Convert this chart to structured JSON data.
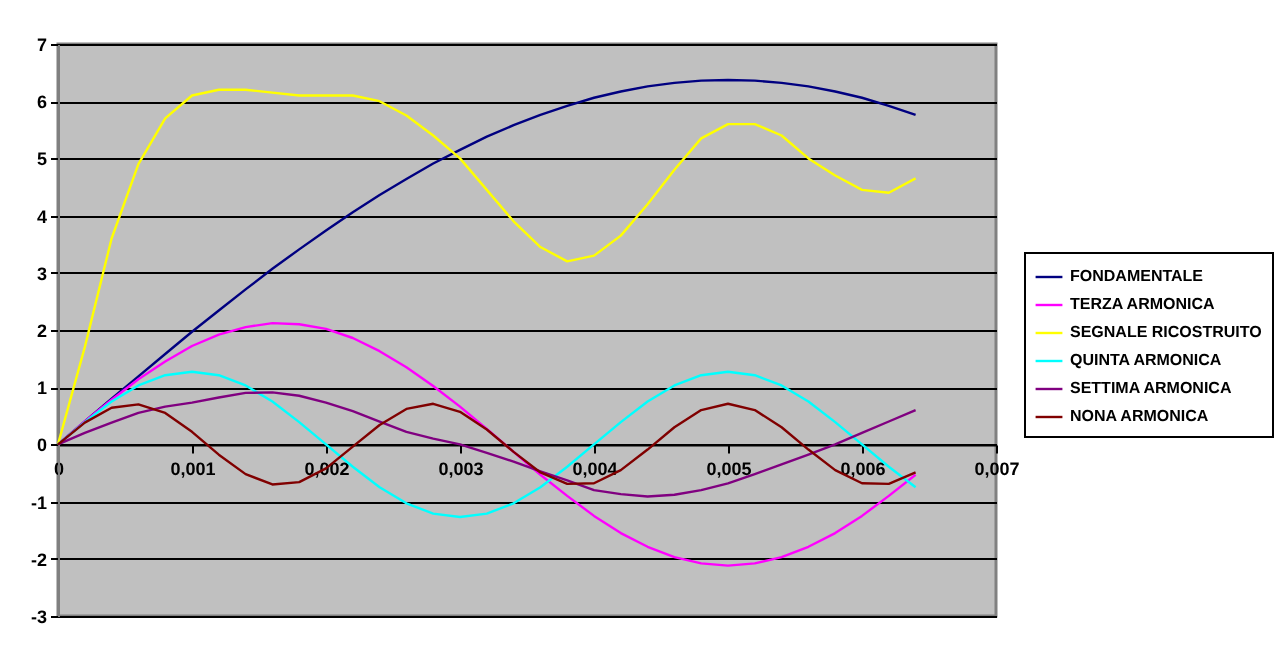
{
  "chart_data": {
    "type": "line",
    "x": [
      0,
      0.0002,
      0.0004,
      0.0006,
      0.0008,
      0.001,
      0.0012,
      0.0014,
      0.0016,
      0.0018,
      0.002,
      0.0022,
      0.0024,
      0.0026,
      0.0028,
      0.003,
      0.0032,
      0.0034,
      0.0036,
      0.0038,
      0.004,
      0.0042,
      0.0044,
      0.0046,
      0.0048,
      0.005,
      0.0052,
      0.0054,
      0.0056,
      0.0058,
      0.006,
      0.0062,
      0.0064
    ],
    "series": [
      {
        "name": "FONDAMENTALE",
        "color": "#000080",
        "values": [
          0,
          0.4,
          0.8,
          1.19,
          1.58,
          1.97,
          2.34,
          2.71,
          3.07,
          3.41,
          3.74,
          4.06,
          4.36,
          4.64,
          4.91,
          5.15,
          5.38,
          5.58,
          5.76,
          5.92,
          6.06,
          6.17,
          6.26,
          6.32,
          6.36,
          6.37,
          6.36,
          6.32,
          6.26,
          6.17,
          6.06,
          5.92,
          5.76
        ]
      },
      {
        "name": "TERZA ARMONICA",
        "color": "#ff00ff",
        "values": [
          0,
          0.4,
          0.78,
          1.14,
          1.45,
          1.72,
          1.92,
          2.05,
          2.12,
          2.1,
          2.02,
          1.86,
          1.63,
          1.35,
          1.02,
          0.66,
          0.27,
          -0.13,
          -0.53,
          -0.9,
          -1.25,
          -1.55,
          -1.79,
          -1.97,
          -2.08,
          -2.12,
          -2.08,
          -1.97,
          -1.79,
          -1.55,
          -1.25,
          -0.9,
          -0.53
        ]
      },
      {
        "name": "SEGNALE RICOSTRUITO",
        "color": "#ffff00",
        "values": [
          0,
          1.7,
          3.6,
          4.9,
          5.7,
          6.1,
          6.2,
          6.2,
          6.15,
          6.1,
          6.1,
          6.1,
          6.0,
          5.75,
          5.4,
          5.0,
          4.45,
          3.9,
          3.45,
          3.2,
          3.3,
          3.65,
          4.2,
          4.8,
          5.35,
          5.6,
          5.6,
          5.4,
          5.0,
          4.7,
          4.45,
          4.4,
          4.65
        ]
      },
      {
        "name": "QUINTA ARMONICA",
        "color": "#00ffff",
        "values": [
          0,
          0.39,
          0.75,
          1.03,
          1.21,
          1.27,
          1.21,
          1.03,
          0.75,
          0.39,
          0,
          -0.39,
          -0.75,
          -1.03,
          -1.21,
          -1.27,
          -1.21,
          -1.03,
          -0.75,
          -0.39,
          0,
          0.39,
          0.75,
          1.03,
          1.21,
          1.27,
          1.21,
          1.03,
          0.75,
          0.39,
          0,
          -0.39,
          -0.75
        ]
      },
      {
        "name": "SETTIMA ARMONICA",
        "color": "#800080",
        "values": [
          0,
          0.2,
          0.38,
          0.55,
          0.66,
          0.73,
          0.82,
          0.9,
          0.91,
          0.85,
          0.73,
          0.58,
          0.4,
          0.22,
          0.1,
          0,
          -0.15,
          -0.3,
          -0.47,
          -0.63,
          -0.8,
          -0.87,
          -0.91,
          -0.88,
          -0.8,
          -0.68,
          -0.52,
          -0.35,
          -0.18,
          0,
          0.2,
          0.4,
          0.6
        ]
      },
      {
        "name": "NONA ARMONICA",
        "color": "#800000",
        "values": [
          0,
          0.38,
          0.64,
          0.7,
          0.55,
          0.22,
          -0.18,
          -0.52,
          -0.7,
          -0.66,
          -0.42,
          -0.04,
          0.34,
          0.62,
          0.71,
          0.57,
          0.26,
          -0.13,
          -0.49,
          -0.69,
          -0.68,
          -0.45,
          -0.09,
          0.3,
          0.6,
          0.71,
          0.6,
          0.3,
          -0.09,
          -0.45,
          -0.68,
          -0.69,
          -0.49
        ]
      }
    ],
    "xlim": [
      0,
      0.007
    ],
    "xticks": [
      {
        "value": 0,
        "label": "0"
      },
      {
        "value": 0.001,
        "label": "0,001"
      },
      {
        "value": 0.002,
        "label": "0,002"
      },
      {
        "value": 0.003,
        "label": "0,003"
      },
      {
        "value": 0.004,
        "label": "0,004"
      },
      {
        "value": 0.005,
        "label": "0,005"
      },
      {
        "value": 0.006,
        "label": "0,006"
      },
      {
        "value": 0.007,
        "label": "0,007"
      }
    ],
    "ylim": [
      -3,
      7
    ],
    "yticks": [
      -3,
      -2,
      -1,
      0,
      1,
      2,
      3,
      4,
      5,
      6,
      7
    ],
    "grid": "y",
    "legend": "right",
    "marker": "none",
    "line_style": "solid"
  }
}
